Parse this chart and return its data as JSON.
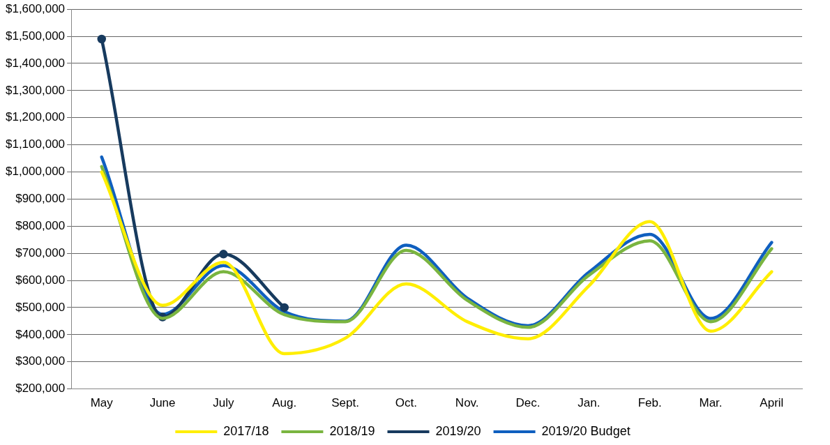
{
  "chart_data": {
    "type": "line",
    "categories": [
      "May",
      "June",
      "July",
      "Aug.",
      "Sept.",
      "Oct.",
      "Nov.",
      "Dec.",
      "Jan.",
      "Feb.",
      "Mar.",
      "April"
    ],
    "series": [
      {
        "name": "2017/18",
        "color": "#ffee00",
        "marker": "none",
        "values": [
          1000000,
          508000,
          667000,
          330000,
          387000,
          587000,
          448000,
          385000,
          580000,
          817000,
          413000,
          632000
        ]
      },
      {
        "name": "2018/19",
        "color": "#7ab540",
        "marker": "none",
        "values": [
          1020000,
          460000,
          632000,
          474000,
          448000,
          711000,
          527000,
          427000,
          619000,
          746000,
          448000,
          717000
        ]
      },
      {
        "name": "2019/20",
        "color": "#173a5e",
        "marker": "circle",
        "values": [
          1490000,
          465000,
          697000,
          500000,
          null,
          null,
          null,
          null,
          null,
          null,
          null,
          null
        ]
      },
      {
        "name": "2019/20 Budget",
        "color": "#0f5fbf",
        "marker": "none",
        "values": [
          1055000,
          475000,
          655000,
          485000,
          450000,
          730000,
          535000,
          433000,
          630000,
          770000,
          460000,
          740000
        ]
      }
    ],
    "ylim": [
      200000,
      1600000
    ],
    "yticks": [
      {
        "value": 200000,
        "label": "$200,000"
      },
      {
        "value": 300000,
        "label": "$300,000"
      },
      {
        "value": 400000,
        "label": "$400,000"
      },
      {
        "value": 500000,
        "label": "$500,000"
      },
      {
        "value": 600000,
        "label": "$600,000"
      },
      {
        "value": 700000,
        "label": "$700,000"
      },
      {
        "value": 800000,
        "label": "$800,000"
      },
      {
        "value": 900000,
        "label": "$900,000"
      },
      {
        "value": 1000000,
        "label": "$1,000,000"
      },
      {
        "value": 1100000,
        "label": "$1,100,000"
      },
      {
        "value": 1200000,
        "label": "$1,200,000"
      },
      {
        "value": 1300000,
        "label": "$1,300,000"
      },
      {
        "value": 1400000,
        "label": "$1,400,000"
      },
      {
        "value": 1500000,
        "label": "$1,500,000"
      },
      {
        "value": 1600000,
        "label": "$1,600,000"
      }
    ],
    "grid": "y",
    "legend": "bottom",
    "line_style": "solid"
  }
}
